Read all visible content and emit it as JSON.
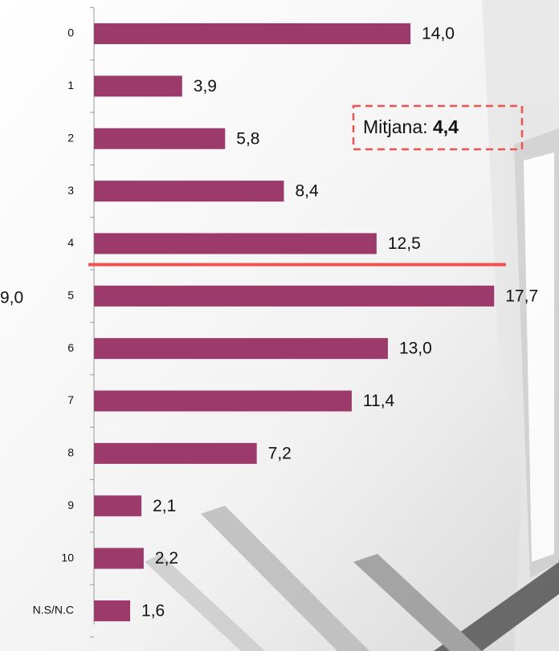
{
  "chart_data": {
    "type": "barh",
    "categories": [
      "0",
      "1",
      "2",
      "3",
      "4",
      "5",
      "6",
      "7",
      "8",
      "9",
      "10",
      "N.S/N.C"
    ],
    "values": [
      14.0,
      3.9,
      5.8,
      8.4,
      12.5,
      17.7,
      13.0,
      11.4,
      7.2,
      2.1,
      2.2,
      1.6
    ],
    "value_labels": [
      "14,0",
      "3,9",
      "5,8",
      "8,4",
      "12,5",
      "17,7",
      "13,0",
      "11,4",
      "7,2",
      "2,1",
      "2,2",
      "1,6"
    ],
    "color": "#9b3a6b",
    "xlim": [
      0,
      20
    ],
    "mean": {
      "label": "Mitjana:",
      "value": 4.4,
      "value_label": "4,4",
      "color": "#f0524f"
    },
    "side_text": "9,0"
  }
}
